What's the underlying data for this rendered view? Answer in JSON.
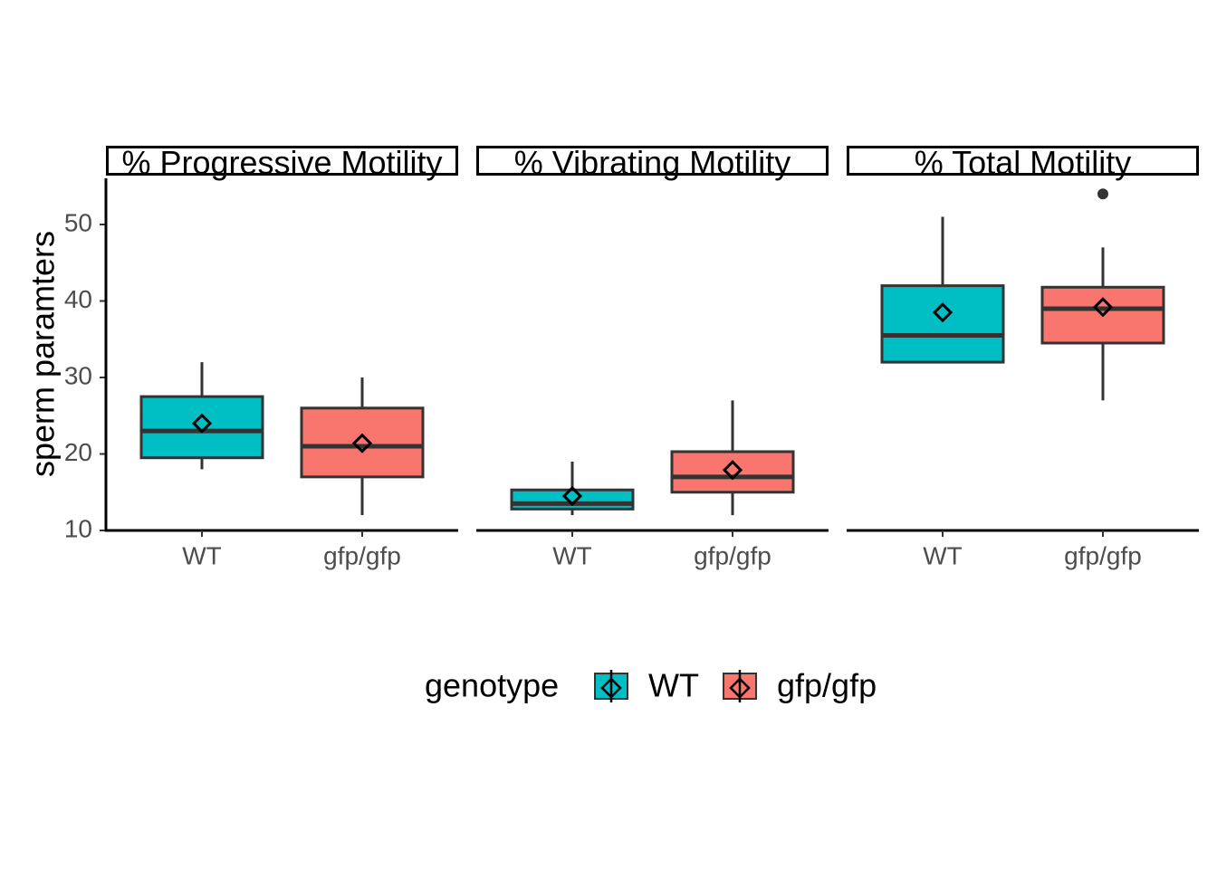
{
  "chart_data": {
    "type": "boxplot",
    "ylabel": "sperm paramters",
    "xlabel": "",
    "ylim": [
      10,
      55
    ],
    "yticks": [
      10,
      20,
      30,
      40,
      50
    ],
    "categories": [
      "WT",
      "gfp/gfp"
    ],
    "legend": {
      "title": "genotype",
      "position": "bottom",
      "entries": [
        {
          "label": "WT",
          "color": "#00bfc4"
        },
        {
          "label": "gfp/gfp",
          "color": "#f8766d"
        }
      ]
    },
    "panels": [
      {
        "title": "% Progressive Motility",
        "boxes": [
          {
            "category": "WT",
            "min": 18,
            "q1": 19.5,
            "median": 23,
            "q3": 27.5,
            "max": 32,
            "mean": 24,
            "outliers": []
          },
          {
            "category": "gfp/gfp",
            "min": 12,
            "q1": 17,
            "median": 21,
            "q3": 26,
            "max": 30,
            "mean": 21.4,
            "outliers": []
          }
        ]
      },
      {
        "title": "% Vibrating Motility",
        "boxes": [
          {
            "category": "WT",
            "min": 12,
            "q1": 12.8,
            "median": 13.5,
            "q3": 15.3,
            "max": 19,
            "mean": 14.5,
            "outliers": []
          },
          {
            "category": "gfp/gfp",
            "min": 12,
            "q1": 15,
            "median": 17,
            "q3": 20.3,
            "max": 27,
            "mean": 17.9,
            "outliers": []
          }
        ]
      },
      {
        "title": "% Total Motility",
        "boxes": [
          {
            "category": "WT",
            "min": 32,
            "q1": 32,
            "median": 35.5,
            "q3": 42,
            "max": 51,
            "mean": 38.5,
            "outliers": []
          },
          {
            "category": "gfp/gfp",
            "min": 27,
            "q1": 34.5,
            "median": 39,
            "q3": 41.8,
            "max": 47,
            "mean": 39.2,
            "outliers": [
              54
            ]
          }
        ]
      }
    ],
    "grid": false
  }
}
